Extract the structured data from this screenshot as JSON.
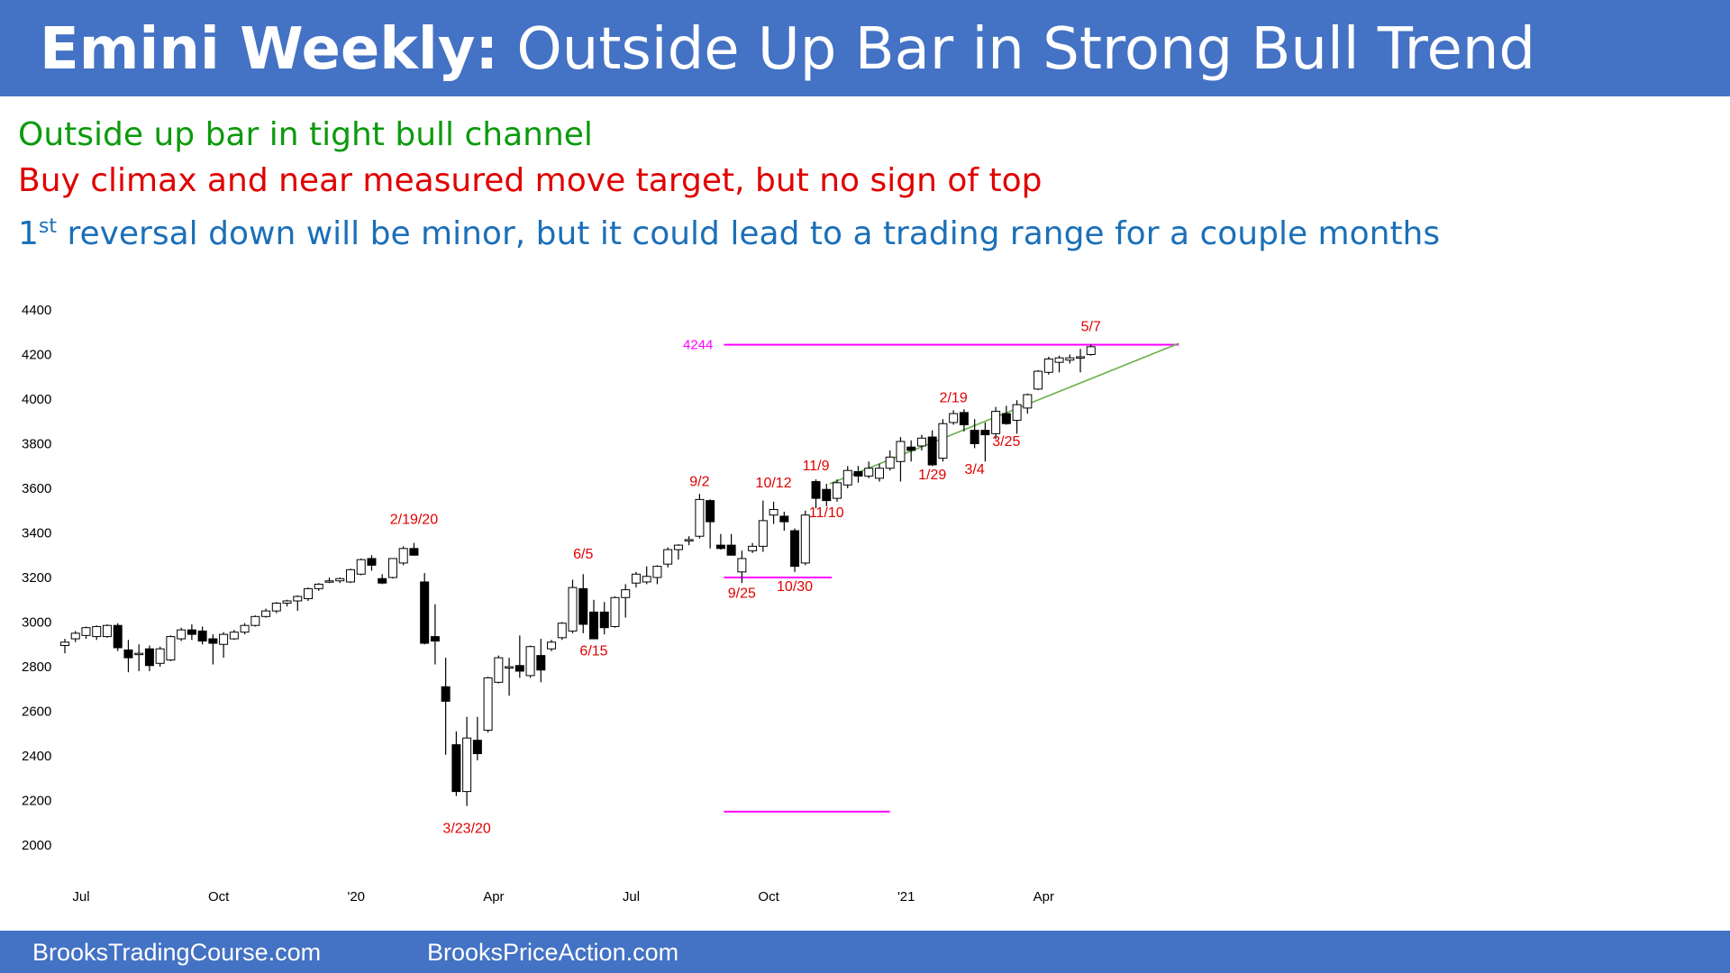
{
  "header": {
    "title_bold": "Emini Weekly:",
    "title_rest": "Outside Up Bar in Strong Bull Trend",
    "background": "#4472C4"
  },
  "bullets": {
    "line1": "Outside up bar in tight bull channel",
    "line2": "Buy climax and near measured move target, but no sign of top",
    "line3_sup_num": "1",
    "line3_sup": "st",
    "line3_rest": " reversal down will be minor, but it could lead to a trading range for a couple months",
    "colors": [
      "#0C9A0C",
      "#E00000",
      "#1B6FB8"
    ]
  },
  "footer": {
    "left": "BrooksTradingCourse.com",
    "right": "BrooksPriceAction.com"
  },
  "chart_data": {
    "type": "candlestick",
    "title": "",
    "xlabel": "",
    "ylabel": "",
    "ylim": [
      1900,
      4450
    ],
    "yticks": [
      2000,
      2200,
      2400,
      2600,
      2800,
      3000,
      3200,
      3400,
      3600,
      3800,
      4000,
      4200,
      4400
    ],
    "xticks": [
      {
        "label": "Jul",
        "week": 0
      },
      {
        "label": "Oct",
        "week": 13
      },
      {
        "label": "'20",
        "week": 26
      },
      {
        "label": "Apr",
        "week": 39
      },
      {
        "label": "Jul",
        "week": 52
      },
      {
        "label": "Oct",
        "week": 65
      },
      {
        "label": "'21",
        "week": 78
      },
      {
        "label": "Apr",
        "week": 91
      }
    ],
    "grid": false,
    "colors": {
      "up_fill": "#ffffff",
      "down_fill": "#000000",
      "annotation": "#E00000",
      "level": "#FF00FF",
      "trendline": "#6AB04C"
    },
    "candles": [
      {
        "o": 2895,
        "h": 2925,
        "l": 2860,
        "c": 2910
      },
      {
        "o": 2925,
        "h": 2960,
        "l": 2910,
        "c": 2950
      },
      {
        "o": 2940,
        "h": 2980,
        "l": 2925,
        "c": 2975
      },
      {
        "o": 2935,
        "h": 2985,
        "l": 2920,
        "c": 2980
      },
      {
        "o": 2935,
        "h": 2990,
        "l": 2930,
        "c": 2985
      },
      {
        "o": 2985,
        "h": 2995,
        "l": 2870,
        "c": 2885
      },
      {
        "o": 2875,
        "h": 2920,
        "l": 2775,
        "c": 2840
      },
      {
        "o": 2855,
        "h": 2900,
        "l": 2780,
        "c": 2860
      },
      {
        "o": 2880,
        "h": 2895,
        "l": 2780,
        "c": 2805
      },
      {
        "o": 2815,
        "h": 2890,
        "l": 2800,
        "c": 2880
      },
      {
        "o": 2830,
        "h": 2940,
        "l": 2825,
        "c": 2935
      },
      {
        "o": 2925,
        "h": 2975,
        "l": 2915,
        "c": 2965
      },
      {
        "o": 2965,
        "h": 2990,
        "l": 2920,
        "c": 2945
      },
      {
        "o": 2960,
        "h": 2980,
        "l": 2900,
        "c": 2915
      },
      {
        "o": 2925,
        "h": 2945,
        "l": 2810,
        "c": 2905
      },
      {
        "o": 2900,
        "h": 2955,
        "l": 2840,
        "c": 2945
      },
      {
        "o": 2925,
        "h": 2965,
        "l": 2920,
        "c": 2955
      },
      {
        "o": 2955,
        "h": 2995,
        "l": 2945,
        "c": 2985
      },
      {
        "o": 2985,
        "h": 3030,
        "l": 2980,
        "c": 3025
      },
      {
        "o": 3025,
        "h": 3060,
        "l": 3020,
        "c": 3050
      },
      {
        "o": 3050,
        "h": 3090,
        "l": 3040,
        "c": 3085
      },
      {
        "o": 3085,
        "h": 3100,
        "l": 3070,
        "c": 3095
      },
      {
        "o": 3095,
        "h": 3120,
        "l": 3050,
        "c": 3115
      },
      {
        "o": 3105,
        "h": 3155,
        "l": 3095,
        "c": 3150
      },
      {
        "o": 3150,
        "h": 3175,
        "l": 3140,
        "c": 3170
      },
      {
        "o": 3180,
        "h": 3200,
        "l": 3175,
        "c": 3185
      },
      {
        "o": 3185,
        "h": 3200,
        "l": 3175,
        "c": 3195
      },
      {
        "o": 3180,
        "h": 3240,
        "l": 3175,
        "c": 3235
      },
      {
        "o": 3215,
        "h": 3285,
        "l": 3210,
        "c": 3280
      },
      {
        "o": 3285,
        "h": 3300,
        "l": 3230,
        "c": 3255
      },
      {
        "o": 3195,
        "h": 3215,
        "l": 3170,
        "c": 3175
      },
      {
        "o": 3200,
        "h": 3285,
        "l": 3195,
        "c": 3285
      },
      {
        "o": 3265,
        "h": 3340,
        "l": 3255,
        "c": 3330
      },
      {
        "o": 3330,
        "h": 3355,
        "l": 3300,
        "c": 3300
      },
      {
        "o": 3180,
        "h": 3220,
        "l": 2900,
        "c": 2905
      },
      {
        "o": 2935,
        "h": 3080,
        "l": 2810,
        "c": 2915
      },
      {
        "o": 2710,
        "h": 2840,
        "l": 2405,
        "c": 2645
      },
      {
        "o": 2450,
        "h": 2510,
        "l": 2220,
        "c": 2240
      },
      {
        "o": 2240,
        "h": 2575,
        "l": 2175,
        "c": 2480
      },
      {
        "o": 2470,
        "h": 2575,
        "l": 2380,
        "c": 2410
      },
      {
        "o": 2515,
        "h": 2755,
        "l": 2505,
        "c": 2750
      },
      {
        "o": 2730,
        "h": 2850,
        "l": 2725,
        "c": 2840
      },
      {
        "o": 2800,
        "h": 2840,
        "l": 2670,
        "c": 2800
      },
      {
        "o": 2805,
        "h": 2940,
        "l": 2750,
        "c": 2780
      },
      {
        "o": 2760,
        "h": 2895,
        "l": 2750,
        "c": 2890
      },
      {
        "o": 2850,
        "h": 2925,
        "l": 2730,
        "c": 2785
      },
      {
        "o": 2880,
        "h": 2920,
        "l": 2870,
        "c": 2910
      },
      {
        "o": 2930,
        "h": 3000,
        "l": 2920,
        "c": 2995
      },
      {
        "o": 2960,
        "h": 3190,
        "l": 2950,
        "c": 3155
      },
      {
        "o": 3150,
        "h": 3215,
        "l": 2950,
        "c": 2990
      },
      {
        "o": 3045,
        "h": 3100,
        "l": 2950,
        "c": 2925
      },
      {
        "o": 3045,
        "h": 3090,
        "l": 2945,
        "c": 2975
      },
      {
        "o": 2980,
        "h": 3115,
        "l": 2975,
        "c": 3110
      },
      {
        "o": 3110,
        "h": 3170,
        "l": 3020,
        "c": 3145
      },
      {
        "o": 3175,
        "h": 3225,
        "l": 3155,
        "c": 3215
      },
      {
        "o": 3180,
        "h": 3250,
        "l": 3170,
        "c": 3205
      },
      {
        "o": 3200,
        "h": 3255,
        "l": 3170,
        "c": 3250
      },
      {
        "o": 3260,
        "h": 3335,
        "l": 3245,
        "c": 3325
      },
      {
        "o": 3325,
        "h": 3350,
        "l": 3280,
        "c": 3345
      },
      {
        "o": 3365,
        "h": 3385,
        "l": 3345,
        "c": 3370
      },
      {
        "o": 3385,
        "h": 3575,
        "l": 3375,
        "c": 3550
      },
      {
        "o": 3545,
        "h": 3550,
        "l": 3330,
        "c": 3450
      },
      {
        "o": 3345,
        "h": 3395,
        "l": 3325,
        "c": 3330
      },
      {
        "o": 3345,
        "h": 3395,
        "l": 3300,
        "c": 3300
      },
      {
        "o": 3225,
        "h": 3320,
        "l": 3175,
        "c": 3285
      },
      {
        "o": 3320,
        "h": 3355,
        "l": 3310,
        "c": 3340
      },
      {
        "o": 3340,
        "h": 3545,
        "l": 3315,
        "c": 3455
      },
      {
        "o": 3480,
        "h": 3540,
        "l": 3440,
        "c": 3505
      },
      {
        "o": 3475,
        "h": 3495,
        "l": 3410,
        "c": 3450
      },
      {
        "o": 3410,
        "h": 3420,
        "l": 3225,
        "c": 3250
      },
      {
        "o": 3265,
        "h": 3500,
        "l": 3255,
        "c": 3480
      },
      {
        "o": 3630,
        "h": 3640,
        "l": 3510,
        "c": 3555
      },
      {
        "o": 3595,
        "h": 3620,
        "l": 3520,
        "c": 3545
      },
      {
        "o": 3555,
        "h": 3640,
        "l": 3540,
        "c": 3625
      },
      {
        "o": 3615,
        "h": 3700,
        "l": 3600,
        "c": 3680
      },
      {
        "o": 3675,
        "h": 3700,
        "l": 3625,
        "c": 3655
      },
      {
        "o": 3655,
        "h": 3720,
        "l": 3645,
        "c": 3690
      },
      {
        "o": 3645,
        "h": 3710,
        "l": 3630,
        "c": 3690
      },
      {
        "o": 3690,
        "h": 3770,
        "l": 3680,
        "c": 3740
      },
      {
        "o": 3720,
        "h": 3830,
        "l": 3630,
        "c": 3810
      },
      {
        "o": 3785,
        "h": 3815,
        "l": 3720,
        "c": 3770
      },
      {
        "o": 3790,
        "h": 3840,
        "l": 3770,
        "c": 3825
      },
      {
        "o": 3830,
        "h": 3860,
        "l": 3700,
        "c": 3705
      },
      {
        "o": 3735,
        "h": 3910,
        "l": 3720,
        "c": 3890
      },
      {
        "o": 3895,
        "h": 3950,
        "l": 3885,
        "c": 3935
      },
      {
        "o": 3940,
        "h": 3955,
        "l": 3855,
        "c": 3885
      },
      {
        "o": 3860,
        "h": 3910,
        "l": 3780,
        "c": 3800
      },
      {
        "o": 3860,
        "h": 3895,
        "l": 3720,
        "c": 3840
      },
      {
        "o": 3845,
        "h": 3965,
        "l": 3820,
        "c": 3945
      },
      {
        "o": 3935,
        "h": 3970,
        "l": 3885,
        "c": 3890
      },
      {
        "o": 3905,
        "h": 3995,
        "l": 3845,
        "c": 3975
      },
      {
        "o": 3960,
        "h": 4025,
        "l": 3935,
        "c": 4020
      },
      {
        "o": 4045,
        "h": 4130,
        "l": 4040,
        "c": 4125
      },
      {
        "o": 4120,
        "h": 4190,
        "l": 4110,
        "c": 4180
      },
      {
        "o": 4165,
        "h": 4195,
        "l": 4120,
        "c": 4185
      },
      {
        "o": 4175,
        "h": 4200,
        "l": 4160,
        "c": 4185
      },
      {
        "o": 4185,
        "h": 4225,
        "l": 4120,
        "c": 4190
      },
      {
        "o": 4200,
        "h": 4245,
        "l": 4195,
        "c": 4235
      }
    ],
    "lines": [
      {
        "type": "level",
        "value": 4244,
        "from": 62.3,
        "to": 105.3,
        "label": "4244"
      },
      {
        "type": "level",
        "value": 3200,
        "from": 62.3,
        "to": 72.5
      },
      {
        "type": "level",
        "value": 2150,
        "from": 62.3,
        "to": 78.0
      },
      {
        "type": "trendline",
        "from": [
          72.3,
          3620
        ],
        "to": [
          105.3,
          4250
        ]
      }
    ],
    "annotations": [
      {
        "text": "2/19/20",
        "week": 33,
        "value": 3440
      },
      {
        "text": "3/23/20",
        "week": 38,
        "value": 2055
      },
      {
        "text": "6/5",
        "week": 49,
        "value": 3285
      },
      {
        "text": "6/15",
        "week": 50,
        "value": 2850
      },
      {
        "text": "9/2",
        "week": 60,
        "value": 3610
      },
      {
        "text": "9/25",
        "week": 64,
        "value": 3110
      },
      {
        "text": "10/12",
        "week": 67,
        "value": 3605
      },
      {
        "text": "10/30",
        "week": 69,
        "value": 3140
      },
      {
        "text": "11/9",
        "week": 71,
        "value": 3680
      },
      {
        "text": "11/10",
        "week": 72,
        "value": 3470
      },
      {
        "text": "1/29",
        "week": 82,
        "value": 3640
      },
      {
        "text": "2/19",
        "week": 84,
        "value": 3985
      },
      {
        "text": "3/4",
        "week": 86,
        "value": 3665
      },
      {
        "text": "3/25",
        "week": 89,
        "value": 3790
      },
      {
        "text": "5/7",
        "week": 97,
        "value": 4305
      }
    ]
  }
}
